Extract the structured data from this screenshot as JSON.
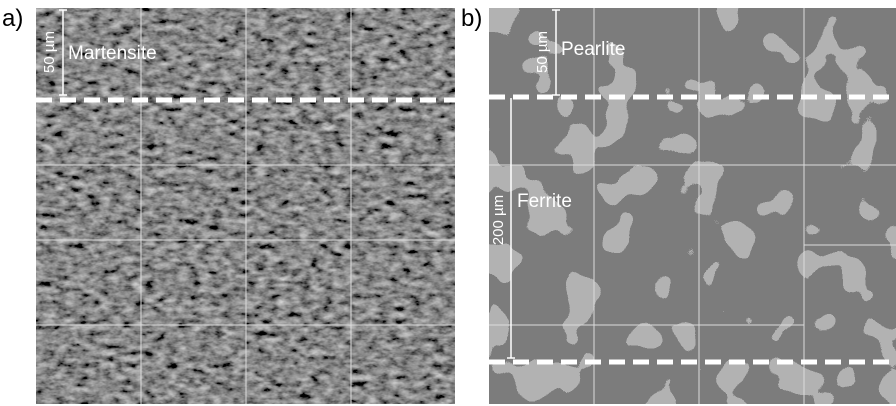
{
  "panel_a": {
    "label": "a)",
    "scale_bar": "50 µm",
    "phase": "Martensite"
  },
  "panel_b": {
    "label": "b)",
    "scale_bar": "50 µm",
    "phase": "Pearlite",
    "scale_bar_large": "200 µm",
    "phase_large": "Ferrite"
  }
}
